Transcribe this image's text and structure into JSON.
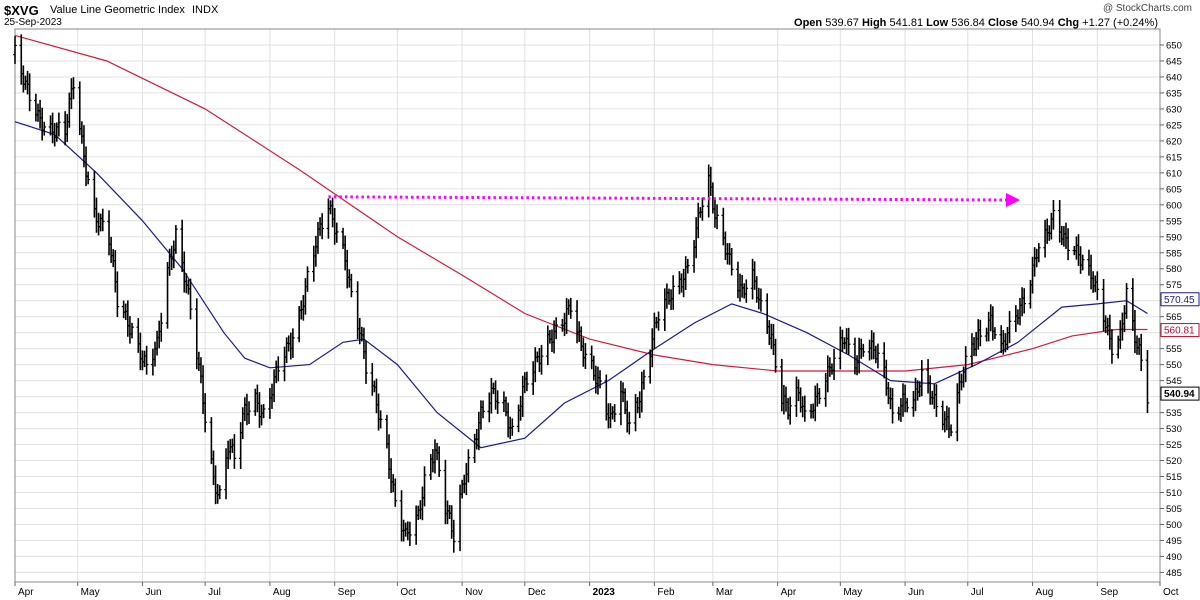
{
  "header": {
    "symbol": "$XVG",
    "name": "Value Line Geometric Index",
    "exchange": "INDX",
    "date": "25-Sep-2023",
    "copyright": "@ StockCharts.com",
    "open_label": "Open",
    "open": "539.67",
    "high_label": "High",
    "high": "541.81",
    "low_label": "Low",
    "low": "536.84",
    "close_label": "Close",
    "close": "540.94",
    "chg_label": "Chg",
    "chg": "+1.27 (+0.24%)"
  },
  "chart_data": {
    "type": "ohlc",
    "title": "$XVG Value Line Geometric Index",
    "ylim": [
      482,
      655
    ],
    "y_ticks": [
      485,
      490,
      495,
      500,
      505,
      510,
      515,
      520,
      525,
      530,
      535,
      540,
      545,
      550,
      555,
      560,
      565,
      570,
      575,
      580,
      585,
      590,
      595,
      600,
      605,
      610,
      615,
      620,
      625,
      630,
      635,
      640,
      645,
      650
    ],
    "x_start": "2022-04-01",
    "x_end": "2023-10-01",
    "x_ticks": [
      {
        "label": "Apr",
        "date": "2022-04-01"
      },
      {
        "label": "May",
        "date": "2022-05-01"
      },
      {
        "label": "Jun",
        "date": "2022-06-01"
      },
      {
        "label": "Jul",
        "date": "2022-07-01"
      },
      {
        "label": "Aug",
        "date": "2022-08-01"
      },
      {
        "label": "Sep",
        "date": "2022-09-01"
      },
      {
        "label": "Oct",
        "date": "2022-10-01"
      },
      {
        "label": "Nov",
        "date": "2022-11-01"
      },
      {
        "label": "Dec",
        "date": "2022-12-01"
      },
      {
        "label": "2023",
        "date": "2023-01-01",
        "bold": true
      },
      {
        "label": "Feb",
        "date": "2023-02-01"
      },
      {
        "label": "Mar",
        "date": "2023-03-01"
      },
      {
        "label": "Apr",
        "date": "2023-04-01"
      },
      {
        "label": "May",
        "date": "2023-05-01"
      },
      {
        "label": "Jun",
        "date": "2023-06-01"
      },
      {
        "label": "Jul",
        "date": "2023-07-01"
      },
      {
        "label": "Aug",
        "date": "2023-08-01"
      },
      {
        "label": "Sep",
        "date": "2023-09-01"
      },
      {
        "label": "Oct",
        "date": "2023-10-01"
      }
    ],
    "price_path": [
      [
        "2022-04-01",
        647
      ],
      [
        "2022-04-06",
        636
      ],
      [
        "2022-04-12",
        628
      ],
      [
        "2022-04-19",
        624
      ],
      [
        "2022-04-25",
        622
      ],
      [
        "2022-04-29",
        638
      ],
      [
        "2022-05-03",
        620
      ],
      [
        "2022-05-09",
        598
      ],
      [
        "2022-05-16",
        588
      ],
      [
        "2022-05-20",
        570
      ],
      [
        "2022-05-27",
        562
      ],
      [
        "2022-06-03",
        548
      ],
      [
        "2022-06-08",
        555
      ],
      [
        "2022-06-13",
        580
      ],
      [
        "2022-06-17",
        592
      ],
      [
        "2022-06-22",
        575
      ],
      [
        "2022-06-28",
        548
      ],
      [
        "2022-07-05",
        515
      ],
      [
        "2022-07-08",
        510
      ],
      [
        "2022-07-12",
        525
      ],
      [
        "2022-07-15",
        520
      ],
      [
        "2022-07-20",
        535
      ],
      [
        "2022-07-25",
        540
      ],
      [
        "2022-07-29",
        535
      ],
      [
        "2022-08-05",
        548
      ],
      [
        "2022-08-10",
        555
      ],
      [
        "2022-08-15",
        566
      ],
      [
        "2022-08-19",
        578
      ],
      [
        "2022-08-23",
        588
      ],
      [
        "2022-08-29",
        598
      ],
      [
        "2022-09-02",
        592
      ],
      [
        "2022-09-06",
        585
      ],
      [
        "2022-09-09",
        572
      ],
      [
        "2022-09-13",
        560
      ],
      [
        "2022-09-16",
        548
      ],
      [
        "2022-09-21",
        538
      ],
      [
        "2022-09-26",
        525
      ],
      [
        "2022-09-30",
        507
      ],
      [
        "2022-10-05",
        495
      ],
      [
        "2022-10-11",
        502
      ],
      [
        "2022-10-14",
        515
      ],
      [
        "2022-10-19",
        525
      ],
      [
        "2022-10-24",
        505
      ],
      [
        "2022-10-28",
        495
      ],
      [
        "2022-11-02",
        515
      ],
      [
        "2022-11-07",
        528
      ],
      [
        "2022-11-10",
        535
      ],
      [
        "2022-11-15",
        540
      ],
      [
        "2022-11-21",
        536
      ],
      [
        "2022-11-25",
        530
      ],
      [
        "2022-11-30",
        543
      ],
      [
        "2022-12-05",
        548
      ],
      [
        "2022-12-09",
        552
      ],
      [
        "2022-12-14",
        560
      ],
      [
        "2022-12-19",
        565
      ],
      [
        "2022-12-23",
        568
      ],
      [
        "2022-12-28",
        554
      ],
      [
        "2023-01-03",
        548
      ],
      [
        "2023-01-06",
        545
      ],
      [
        "2023-01-11",
        533
      ],
      [
        "2023-01-16",
        540
      ],
      [
        "2023-01-20",
        530
      ],
      [
        "2023-01-25",
        541
      ],
      [
        "2023-01-31",
        559
      ],
      [
        "2023-02-03",
        565
      ],
      [
        "2023-02-08",
        570
      ],
      [
        "2023-02-13",
        576
      ],
      [
        "2023-02-16",
        580
      ],
      [
        "2023-02-20",
        590
      ],
      [
        "2023-02-23",
        598
      ],
      [
        "2023-02-27",
        606
      ],
      [
        "2023-03-02",
        596
      ],
      [
        "2023-03-06",
        590
      ],
      [
        "2023-03-10",
        582
      ],
      [
        "2023-03-15",
        572
      ],
      [
        "2023-03-20",
        576
      ],
      [
        "2023-03-24",
        568
      ],
      [
        "2023-03-29",
        560
      ],
      [
        "2023-04-03",
        540
      ],
      [
        "2023-04-06",
        535
      ],
      [
        "2023-04-11",
        540
      ],
      [
        "2023-04-14",
        534
      ],
      [
        "2023-04-19",
        540
      ],
      [
        "2023-04-24",
        546
      ],
      [
        "2023-04-28",
        550
      ],
      [
        "2023-05-03",
        558
      ],
      [
        "2023-05-08",
        552
      ],
      [
        "2023-05-12",
        557
      ],
      [
        "2023-05-17",
        554
      ],
      [
        "2023-05-22",
        546
      ],
      [
        "2023-05-26",
        535
      ],
      [
        "2023-05-31",
        540
      ],
      [
        "2023-06-05",
        538
      ],
      [
        "2023-06-09",
        545
      ],
      [
        "2023-06-14",
        540
      ],
      [
        "2023-06-19",
        535
      ],
      [
        "2023-06-23",
        531
      ],
      [
        "2023-06-28",
        545
      ],
      [
        "2023-07-03",
        555
      ],
      [
        "2023-07-07",
        561
      ],
      [
        "2023-07-12",
        565
      ],
      [
        "2023-07-17",
        554
      ],
      [
        "2023-07-21",
        560
      ],
      [
        "2023-07-26",
        568
      ],
      [
        "2023-07-31",
        578
      ],
      [
        "2023-08-03",
        586
      ],
      [
        "2023-08-08",
        590
      ],
      [
        "2023-08-11",
        595
      ],
      [
        "2023-08-16",
        590
      ],
      [
        "2023-08-21",
        588
      ],
      [
        "2023-08-25",
        582
      ],
      [
        "2023-08-30",
        575
      ],
      [
        "2023-09-04",
        565
      ],
      [
        "2023-09-08",
        557
      ],
      [
        "2023-09-12",
        560
      ],
      [
        "2023-09-15",
        572
      ],
      [
        "2023-09-19",
        557
      ],
      [
        "2023-09-21",
        553
      ],
      [
        "2023-09-25",
        540
      ]
    ],
    "sma_red": [
      [
        "2022-04-01",
        653
      ],
      [
        "2022-05-15",
        645
      ],
      [
        "2022-07-01",
        630
      ],
      [
        "2022-08-15",
        611
      ],
      [
        "2022-10-01",
        590
      ],
      [
        "2022-11-01",
        578
      ],
      [
        "2022-12-01",
        566
      ],
      [
        "2023-01-01",
        558
      ],
      [
        "2023-02-01",
        553
      ],
      [
        "2023-03-01",
        550
      ],
      [
        "2023-04-01",
        548
      ],
      [
        "2023-05-01",
        548
      ],
      [
        "2023-06-01",
        548
      ],
      [
        "2023-07-01",
        550
      ],
      [
        "2023-08-01",
        555
      ],
      [
        "2023-08-20",
        559
      ],
      [
        "2023-09-10",
        561
      ],
      [
        "2023-09-25",
        561
      ]
    ],
    "sma_blue": [
      [
        "2022-04-01",
        626
      ],
      [
        "2022-04-20",
        622
      ],
      [
        "2022-05-10",
        610
      ],
      [
        "2022-06-01",
        595
      ],
      [
        "2022-06-20",
        580
      ],
      [
        "2022-07-10",
        560
      ],
      [
        "2022-07-20",
        552
      ],
      [
        "2022-08-01",
        549
      ],
      [
        "2022-08-20",
        550
      ],
      [
        "2022-09-05",
        557
      ],
      [
        "2022-09-15",
        558
      ],
      [
        "2022-10-01",
        550
      ],
      [
        "2022-10-20",
        535
      ],
      [
        "2022-11-10",
        524
      ],
      [
        "2022-12-01",
        527
      ],
      [
        "2022-12-20",
        538
      ],
      [
        "2023-01-10",
        545
      ],
      [
        "2023-02-01",
        555
      ],
      [
        "2023-02-20",
        563
      ],
      [
        "2023-03-10",
        569
      ],
      [
        "2023-03-25",
        566
      ],
      [
        "2023-04-15",
        560
      ],
      [
        "2023-05-05",
        553
      ],
      [
        "2023-05-25",
        545
      ],
      [
        "2023-06-15",
        544
      ],
      [
        "2023-07-05",
        550
      ],
      [
        "2023-07-25",
        557
      ],
      [
        "2023-08-15",
        568
      ],
      [
        "2023-09-01",
        569
      ],
      [
        "2023-09-15",
        570
      ],
      [
        "2023-09-25",
        566
      ]
    ],
    "resistance_line": {
      "from": [
        "2022-08-29",
        602.5
      ],
      "to": [
        "2023-07-26",
        601.5
      ],
      "color": "#ff00ff"
    },
    "price_labels": [
      {
        "value": "570.45",
        "y": 570.45,
        "color": "#1a1a8c"
      },
      {
        "value": "560.81",
        "y": 560.81,
        "color": "#b01030"
      },
      {
        "value": "540.94",
        "y": 540.94,
        "color": "#000000",
        "bold": true
      }
    ],
    "colors": {
      "price": "#000000",
      "sma_red": "#cc1f3d",
      "sma_blue": "#1a1a8c",
      "grid": "#e0e0e0"
    }
  }
}
